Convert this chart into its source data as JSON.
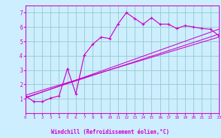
{
  "bg_color": "#cceeff",
  "grid_color": "#99cccc",
  "line_color": "#cc00cc",
  "marker_color": "#cc00cc",
  "xlabel": "Windchill (Refroidissement éolien,°C)",
  "ylim": [
    0,
    7.5
  ],
  "xlim": [
    0,
    23
  ],
  "yticks": [
    1,
    2,
    3,
    4,
    5,
    6,
    7
  ],
  "xticks": [
    0,
    1,
    2,
    3,
    4,
    5,
    6,
    7,
    8,
    9,
    10,
    11,
    12,
    13,
    14,
    15,
    16,
    17,
    18,
    19,
    20,
    21,
    22,
    23
  ],
  "main_x": [
    0,
    1,
    2,
    3,
    4,
    5,
    6,
    7,
    8,
    9,
    10,
    11,
    12,
    13,
    14,
    15,
    16,
    17,
    18,
    19,
    20,
    21,
    22,
    23
  ],
  "main_y": [
    1.2,
    0.8,
    0.8,
    1.05,
    1.2,
    3.1,
    1.35,
    4.05,
    4.8,
    5.3,
    5.2,
    6.2,
    7.0,
    6.6,
    6.2,
    6.65,
    6.2,
    6.2,
    5.9,
    6.1,
    6.0,
    5.9,
    5.85,
    5.4
  ],
  "line2_x": [
    0,
    23
  ],
  "line2_y": [
    1.1,
    5.5
  ],
  "line3_x": [
    0,
    23
  ],
  "line3_y": [
    1.25,
    5.3
  ],
  "line4_x": [
    0,
    23
  ],
  "line4_y": [
    1.05,
    5.85
  ]
}
